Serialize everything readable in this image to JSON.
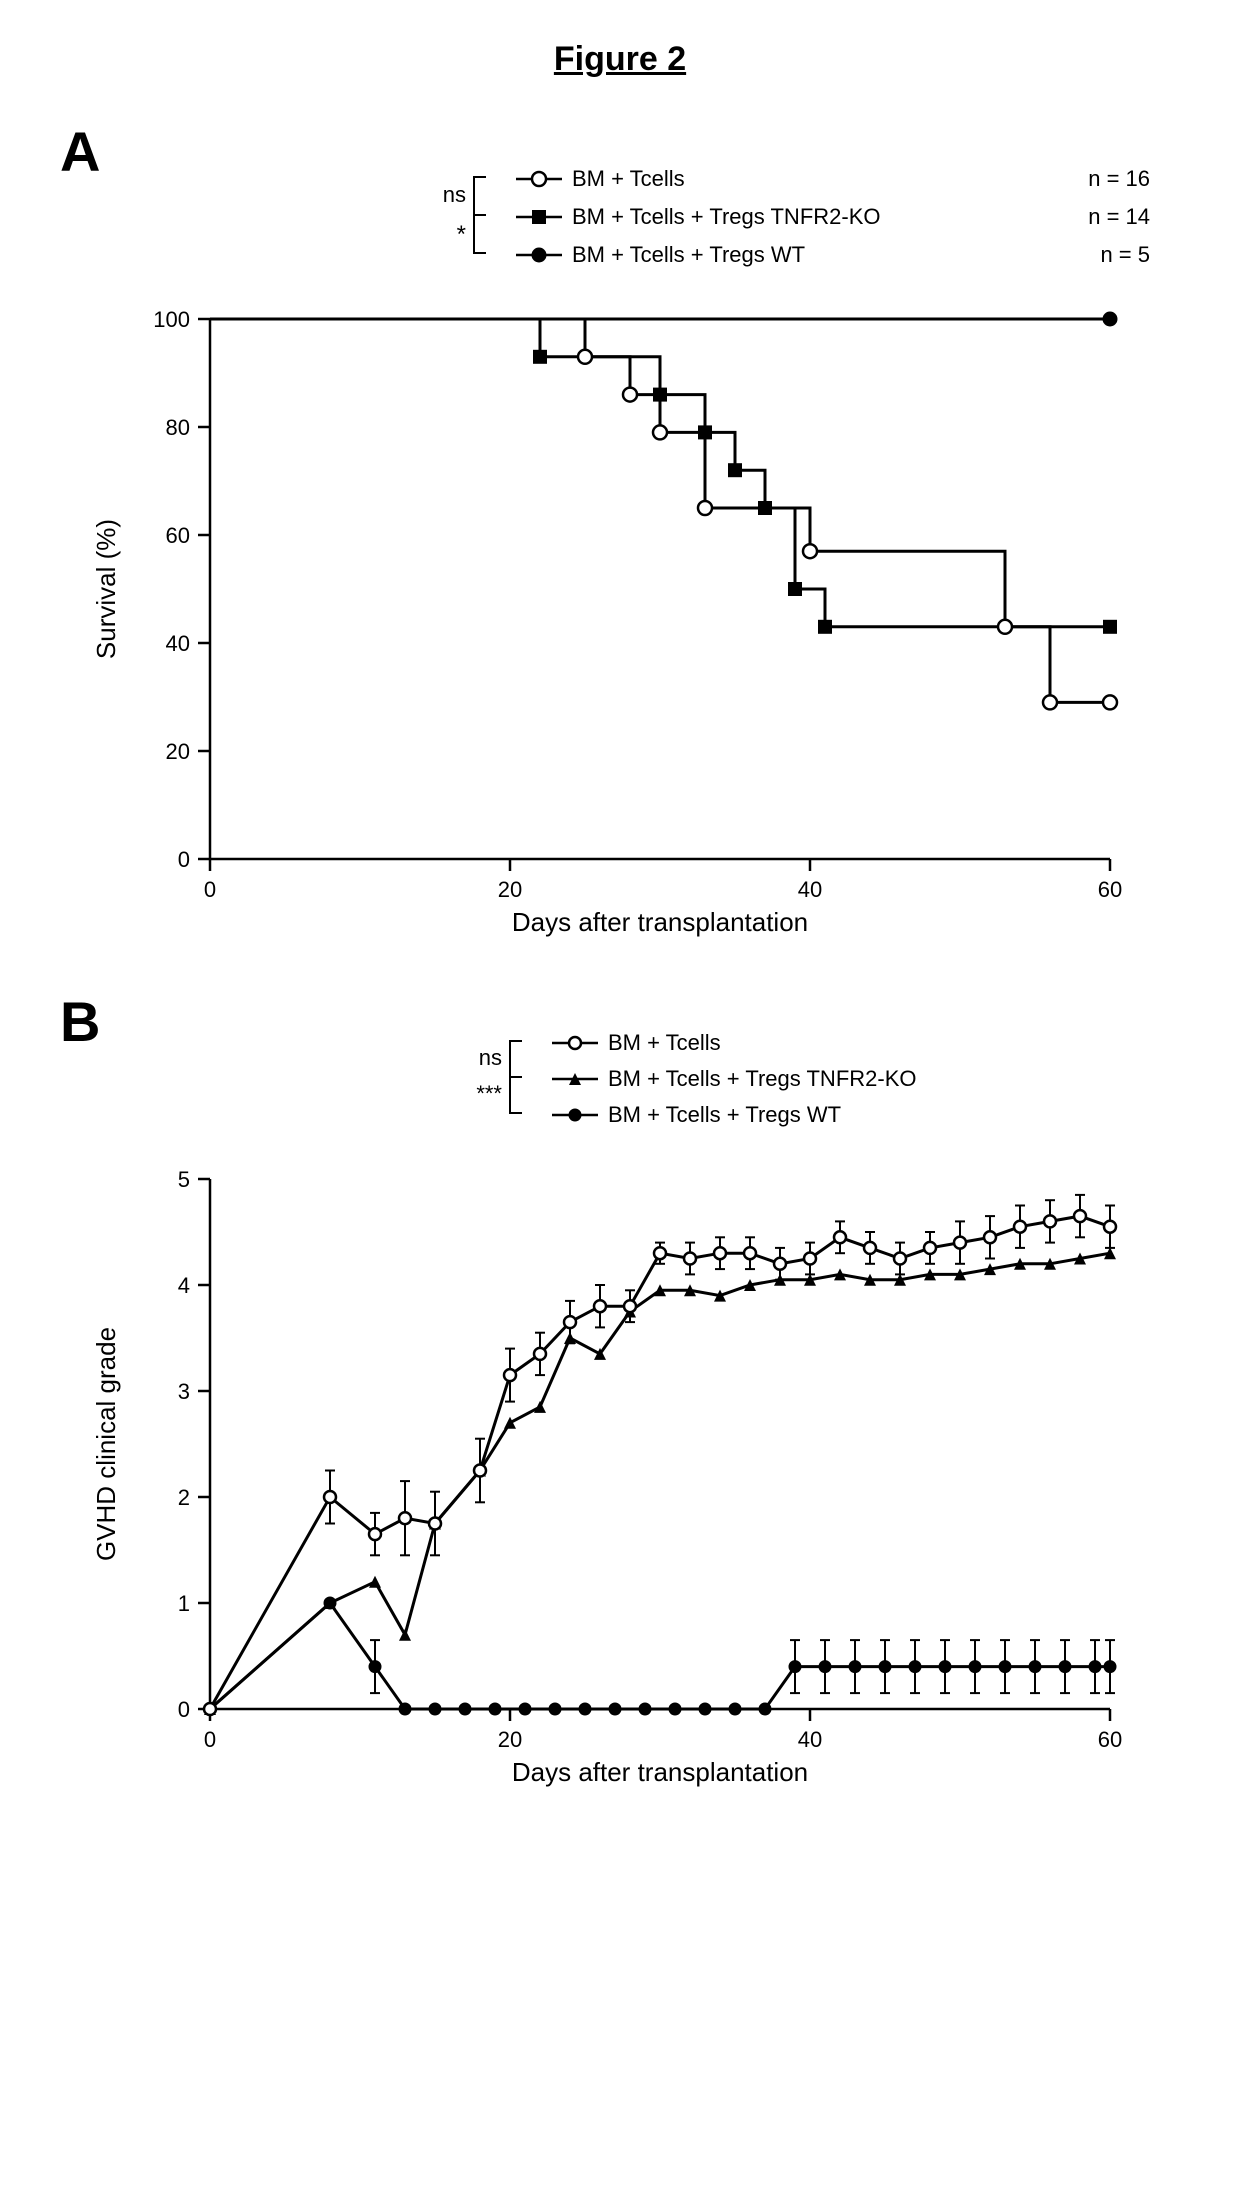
{
  "figure_title": "Figure 2",
  "panelA": {
    "letter": "A",
    "type": "kaplan-meier",
    "xlabel": "Days after transplantation",
    "ylabel": "Survival (%)",
    "xlim": [
      0,
      60
    ],
    "ylim": [
      0,
      100
    ],
    "xticks": [
      0,
      20,
      40,
      60
    ],
    "yticks": [
      0,
      20,
      40,
      60,
      80,
      100
    ],
    "label_fontsize": 26,
    "tick_fontsize": 22,
    "legend_fontsize": 22,
    "line_color": "#000000",
    "line_width": 3,
    "marker_size": 7,
    "legend": {
      "ns_label": "ns",
      "sig_label": "*",
      "items": [
        {
          "label": "BM + Tcells",
          "n": "n = 16",
          "marker": "open-circle"
        },
        {
          "label": "BM + Tcells + Tregs TNFR2-KO",
          "n": "n = 14",
          "marker": "filled-square"
        },
        {
          "label": "BM + Tcells + Tregs WT",
          "n": "n = 5",
          "marker": "filled-circle"
        }
      ]
    },
    "series": {
      "bm_tcells": {
        "marker": "open-circle",
        "steps": [
          [
            0,
            100
          ],
          [
            25,
            100
          ],
          [
            25,
            93
          ],
          [
            28,
            93
          ],
          [
            28,
            86
          ],
          [
            30,
            86
          ],
          [
            30,
            79
          ],
          [
            33,
            79
          ],
          [
            33,
            65
          ],
          [
            40,
            65
          ],
          [
            40,
            57
          ],
          [
            53,
            57
          ],
          [
            53,
            43
          ],
          [
            56,
            43
          ],
          [
            56,
            29
          ],
          [
            60,
            29
          ]
        ],
        "markers_at": [
          [
            25,
            93
          ],
          [
            28,
            86
          ],
          [
            30,
            79
          ],
          [
            33,
            65
          ],
          [
            40,
            57
          ],
          [
            53,
            43
          ],
          [
            56,
            29
          ],
          [
            60,
            29
          ]
        ]
      },
      "bm_tcells_tregs_ko": {
        "marker": "filled-square",
        "steps": [
          [
            0,
            100
          ],
          [
            22,
            100
          ],
          [
            22,
            93
          ],
          [
            30,
            93
          ],
          [
            30,
            86
          ],
          [
            33,
            86
          ],
          [
            33,
            79
          ],
          [
            35,
            79
          ],
          [
            35,
            72
          ],
          [
            37,
            72
          ],
          [
            37,
            65
          ],
          [
            39,
            65
          ],
          [
            39,
            50
          ],
          [
            41,
            50
          ],
          [
            41,
            43
          ],
          [
            60,
            43
          ]
        ],
        "markers_at": [
          [
            22,
            93
          ],
          [
            30,
            86
          ],
          [
            33,
            79
          ],
          [
            35,
            72
          ],
          [
            37,
            65
          ],
          [
            39,
            50
          ],
          [
            41,
            43
          ],
          [
            60,
            43
          ]
        ]
      },
      "bm_tcells_tregs_wt": {
        "marker": "filled-circle",
        "steps": [
          [
            0,
            100
          ],
          [
            60,
            100
          ]
        ],
        "markers_at": [
          [
            60,
            100
          ]
        ]
      }
    }
  },
  "panelB": {
    "letter": "B",
    "type": "line-errorbars",
    "xlabel": "Days after transplantation",
    "ylabel": "GVHD clinical grade",
    "xlim": [
      0,
      60
    ],
    "ylim": [
      0,
      5
    ],
    "xticks": [
      0,
      20,
      40,
      60
    ],
    "yticks": [
      0,
      1,
      2,
      3,
      4,
      5
    ],
    "label_fontsize": 26,
    "tick_fontsize": 22,
    "legend_fontsize": 22,
    "line_color": "#000000",
    "line_width": 2.5,
    "marker_size": 6,
    "err_cap": 5,
    "legend": {
      "ns_label": "ns",
      "sig_label": "***",
      "items": [
        {
          "label": "BM + Tcells",
          "marker": "open-circle"
        },
        {
          "label": "BM + Tcells + Tregs TNFR2-KO",
          "marker": "filled-triangle"
        },
        {
          "label": "BM + Tcells + Tregs WT",
          "marker": "filled-circle"
        }
      ]
    },
    "series": {
      "bm_tcells": {
        "marker": "open-circle",
        "points": [
          [
            0,
            0,
            0
          ],
          [
            8,
            2.0,
            0.25
          ],
          [
            11,
            1.65,
            0.2
          ],
          [
            13,
            1.8,
            0.35
          ],
          [
            15,
            1.75,
            0.3
          ],
          [
            18,
            2.25,
            0.3
          ],
          [
            20,
            3.15,
            0.25
          ],
          [
            22,
            3.35,
            0.2
          ],
          [
            24,
            3.65,
            0.2
          ],
          [
            26,
            3.8,
            0.2
          ],
          [
            28,
            3.8,
            0.15
          ],
          [
            30,
            4.3,
            0.1
          ],
          [
            32,
            4.25,
            0.15
          ],
          [
            34,
            4.3,
            0.15
          ],
          [
            36,
            4.3,
            0.15
          ],
          [
            38,
            4.2,
            0.15
          ],
          [
            40,
            4.25,
            0.15
          ],
          [
            42,
            4.45,
            0.15
          ],
          [
            44,
            4.35,
            0.15
          ],
          [
            46,
            4.25,
            0.15
          ],
          [
            48,
            4.35,
            0.15
          ],
          [
            50,
            4.4,
            0.2
          ],
          [
            52,
            4.45,
            0.2
          ],
          [
            54,
            4.55,
            0.2
          ],
          [
            56,
            4.6,
            0.2
          ],
          [
            58,
            4.65,
            0.2
          ],
          [
            60,
            4.55,
            0.2
          ]
        ]
      },
      "bm_tcells_tregs_ko": {
        "marker": "filled-triangle",
        "points": [
          [
            0,
            0,
            0
          ],
          [
            8,
            1.0,
            0
          ],
          [
            11,
            1.2,
            0
          ],
          [
            13,
            0.7,
            0
          ],
          [
            15,
            1.75,
            0
          ],
          [
            18,
            2.25,
            0
          ],
          [
            20,
            2.7,
            0
          ],
          [
            22,
            2.85,
            0
          ],
          [
            24,
            3.5,
            0
          ],
          [
            26,
            3.35,
            0
          ],
          [
            28,
            3.75,
            0
          ],
          [
            30,
            3.95,
            0
          ],
          [
            32,
            3.95,
            0
          ],
          [
            34,
            3.9,
            0
          ],
          [
            36,
            4.0,
            0
          ],
          [
            38,
            4.05,
            0
          ],
          [
            40,
            4.05,
            0
          ],
          [
            42,
            4.1,
            0
          ],
          [
            44,
            4.05,
            0
          ],
          [
            46,
            4.05,
            0
          ],
          [
            48,
            4.1,
            0
          ],
          [
            50,
            4.1,
            0
          ],
          [
            52,
            4.15,
            0
          ],
          [
            54,
            4.2,
            0
          ],
          [
            56,
            4.2,
            0
          ],
          [
            58,
            4.25,
            0
          ],
          [
            60,
            4.3,
            0
          ]
        ]
      },
      "bm_tcells_tregs_wt": {
        "marker": "filled-circle",
        "points": [
          [
            0,
            0,
            0
          ],
          [
            8,
            1.0,
            0
          ],
          [
            11,
            0.4,
            0.25
          ],
          [
            13,
            0.0,
            0
          ],
          [
            15,
            0.0,
            0
          ],
          [
            17,
            0.0,
            0
          ],
          [
            19,
            0.0,
            0
          ],
          [
            21,
            0.0,
            0
          ],
          [
            23,
            0.0,
            0
          ],
          [
            25,
            0.0,
            0
          ],
          [
            27,
            0.0,
            0
          ],
          [
            29,
            0.0,
            0
          ],
          [
            31,
            0.0,
            0
          ],
          [
            33,
            0.0,
            0
          ],
          [
            35,
            0.0,
            0
          ],
          [
            37,
            0.0,
            0
          ],
          [
            39,
            0.4,
            0.25
          ],
          [
            41,
            0.4,
            0.25
          ],
          [
            43,
            0.4,
            0.25
          ],
          [
            45,
            0.4,
            0.25
          ],
          [
            47,
            0.4,
            0.25
          ],
          [
            49,
            0.4,
            0.25
          ],
          [
            51,
            0.4,
            0.25
          ],
          [
            53,
            0.4,
            0.25
          ],
          [
            55,
            0.4,
            0.25
          ],
          [
            57,
            0.4,
            0.25
          ],
          [
            59,
            0.4,
            0.25
          ],
          [
            60,
            0.4,
            0.25
          ]
        ]
      }
    }
  }
}
